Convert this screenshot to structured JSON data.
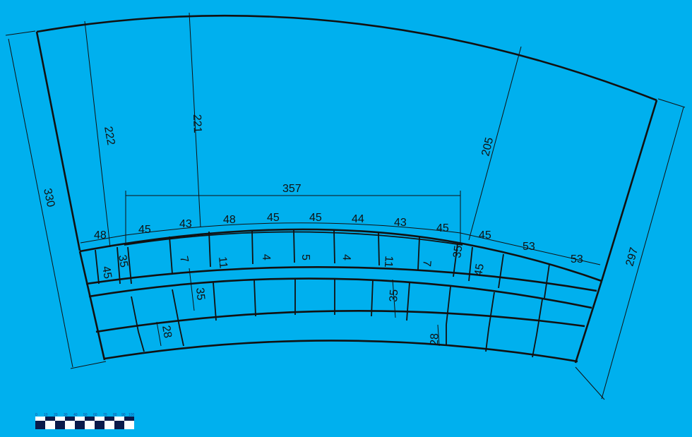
{
  "background_color": "#00b0ee",
  "line_color": "#111111",
  "dimensions": {
    "overall_left_edge": "330",
    "overall_right_edge": "297",
    "left_height": "222",
    "center_height": "221",
    "right_height": "205",
    "top_span": "357"
  },
  "top_row_labels": [
    "48",
    "45",
    "43",
    "48",
    "45",
    "45",
    "44",
    "43",
    "45",
    "45",
    "53",
    "53"
  ],
  "inner_labels": [
    "45",
    "35",
    "7",
    "11",
    "4",
    "5",
    "4",
    "11",
    "7",
    "35",
    "45"
  ],
  "lower_labels": [
    "35",
    "28",
    "35",
    "28"
  ],
  "scale_bar": {
    "ticks": [
      "0",
      "10",
      "20",
      "30",
      "40",
      "50",
      "60",
      "70",
      "80",
      "90",
      "100"
    ]
  }
}
